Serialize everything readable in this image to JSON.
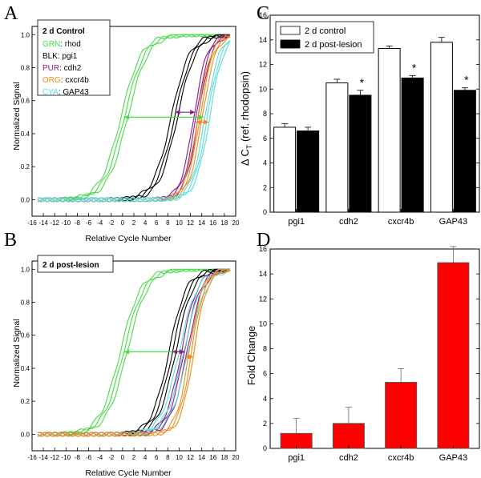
{
  "panels": [
    {
      "letter": "A",
      "chart_data": {
        "type": "line",
        "title": "2 d Control",
        "xlabel": "Relative Cycle Number",
        "ylabel": "Normalized Signal",
        "xlim": [
          -16,
          20
        ],
        "ylim": [
          -0.1,
          1.05
        ],
        "xticks": [
          -16,
          -14,
          -12,
          -10,
          -8,
          -6,
          -4,
          -2,
          0,
          2,
          4,
          6,
          8,
          10,
          12,
          14,
          16,
          18,
          20
        ],
        "yticks": [
          0.0,
          0.2,
          0.4,
          0.6,
          0.8,
          1.0
        ],
        "legend": [
          {
            "code": "GRN",
            "gene": "rhod",
            "color": "#44dd44"
          },
          {
            "code": "BLK",
            "gene": "pgi1",
            "color": "#000000"
          },
          {
            "code": "PUR",
            "gene": "cdh2",
            "color": "#8b1a8b"
          },
          {
            "code": "ORG",
            "gene": "cxcr4b",
            "color": "#f08a1c"
          },
          {
            "code": "CYA",
            "gene": "GAP43",
            "color": "#55dddd"
          }
        ],
        "series": [
          {
            "gene": "rhod",
            "color": "#44dd44",
            "midpoints": [
              -0.3,
              0.3,
              0.9
            ],
            "k": 0.55
          },
          {
            "gene": "pgi1",
            "color": "#000000",
            "midpoints": [
              8.6,
              9.2,
              9.7
            ],
            "k": 0.62
          },
          {
            "gene": "cdh2",
            "color": "#8b1a8b",
            "midpoints": [
              12.6,
              13.0,
              13.4
            ],
            "k": 0.85
          },
          {
            "gene": "cxcr4b",
            "color": "#f08a1c",
            "midpoints": [
              13.3,
              13.7,
              14.1
            ],
            "k": 0.85
          },
          {
            "gene": "GAP43",
            "color": "#55dddd",
            "midpoints": [
              14.6,
              15.0,
              15.4
            ],
            "k": 0.8
          }
        ],
        "arrows": [
          {
            "y": 0.5,
            "x1": 0.3,
            "x2": 14.3,
            "color": "#44dd44"
          },
          {
            "y": 0.53,
            "x1": 9.3,
            "x2": 12.8,
            "color": "#8b1a8b"
          },
          {
            "y": 0.47,
            "x1": 13.0,
            "x2": 15.2,
            "color": "#f08a1c"
          }
        ]
      }
    },
    {
      "letter": "B",
      "chart_data": {
        "type": "line",
        "title": "2 d post-lesion",
        "xlabel": "Relative Cycle Number",
        "ylabel": "Normalized Signal",
        "xlim": [
          -16,
          20
        ],
        "ylim": [
          -0.1,
          1.05
        ],
        "xticks": [
          -16,
          -14,
          -12,
          -10,
          -8,
          -6,
          -4,
          -2,
          0,
          2,
          4,
          6,
          8,
          10,
          12,
          14,
          16,
          18,
          20
        ],
        "yticks": [
          0.0,
          0.2,
          0.4,
          0.6,
          0.8,
          1.0
        ],
        "series": [
          {
            "gene": "rhod",
            "color": "#44dd44",
            "midpoints": [
              -0.4,
              0.2,
              0.8
            ],
            "k": 0.55
          },
          {
            "gene": "pgi1",
            "color": "#000000",
            "midpoints": [
              8.2,
              8.8,
              9.4
            ],
            "k": 0.65
          },
          {
            "gene": "cdh2",
            "color": "#8b1a8b",
            "midpoints": [
              10.4,
              10.9,
              11.4
            ],
            "k": 0.7
          },
          {
            "gene": "GAP43",
            "color": "#55dddd",
            "midpoints": [
              10.0,
              10.8,
              11.6
            ],
            "k": 0.62
          },
          {
            "gene": "cxcr4b",
            "color": "#f08a1c",
            "midpoints": [
              11.8,
              12.2,
              12.6
            ],
            "k": 0.85
          }
        ],
        "arrows": [
          {
            "y": 0.5,
            "x1": 0.3,
            "x2": 10.8,
            "color": "#44dd44"
          },
          {
            "y": 0.5,
            "x1": 8.8,
            "x2": 11.0,
            "color": "#8b1a8b"
          },
          {
            "y": 0.47,
            "x1": 11.0,
            "x2": 12.5,
            "color": "#f08a1c"
          }
        ]
      }
    },
    {
      "letter": "C",
      "chart_data": {
        "type": "bar",
        "ylabel_main": "Δ C",
        "ylabel_sub": "T",
        "ylabel_rest": " (ref. rhodopsin)",
        "categories": [
          "pgi1",
          "cdh2",
          "cxcr4b",
          "GAP43"
        ],
        "ylim": [
          0,
          16
        ],
        "yticks": [
          0,
          2,
          4,
          6,
          8,
          10,
          12,
          14,
          16
        ],
        "series": [
          {
            "name": "2 d control",
            "color": "#ffffff",
            "values": [
              6.9,
              10.5,
              13.3,
              13.8
            ],
            "errors": [
              0.3,
              0.3,
              0.2,
              0.4
            ]
          },
          {
            "name": "2 d post-lesion",
            "color": "#000000",
            "values": [
              6.6,
              9.5,
              10.9,
              9.9
            ],
            "errors": [
              0.3,
              0.4,
              0.2,
              0.2
            ]
          }
        ],
        "significance": [
          "",
          "*",
          "*",
          "*"
        ],
        "legend_position": "top-left"
      }
    },
    {
      "letter": "D",
      "chart_data": {
        "type": "bar",
        "ylabel": "Fold Change",
        "categories": [
          "pgi1",
          "cdh2",
          "cxcr4b",
          "GAP43"
        ],
        "ylim": [
          0,
          16
        ],
        "yticks": [
          0,
          2,
          4,
          6,
          8,
          10,
          12,
          14,
          16
        ],
        "values": [
          1.2,
          2.0,
          5.3,
          14.9
        ],
        "errors": [
          1.2,
          1.3,
          1.1,
          1.3
        ],
        "color": "#ff0000"
      }
    }
  ]
}
